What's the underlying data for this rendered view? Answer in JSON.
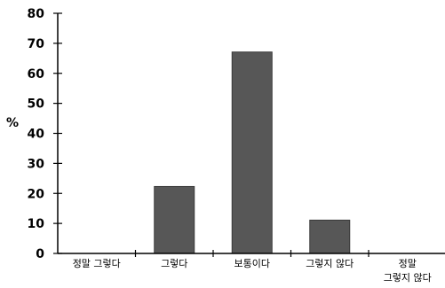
{
  "chart_data": {
    "type": "bar",
    "categories": [
      [
        "정말 그렇다"
      ],
      [
        "그렇다"
      ],
      [
        "보통이다"
      ],
      [
        "그렇지 않다"
      ],
      [
        "정말",
        "그렇지 않다"
      ]
    ],
    "values": [
      0,
      22.3,
      67.1,
      11.1,
      0
    ],
    "title": "",
    "xlabel": "",
    "ylabel": "%",
    "ylim": [
      0,
      80
    ],
    "yticks": [
      0,
      10,
      20,
      30,
      40,
      50,
      60,
      70,
      80
    ],
    "grid": false,
    "bar_color": "#575757",
    "axis_color": "#000000"
  }
}
